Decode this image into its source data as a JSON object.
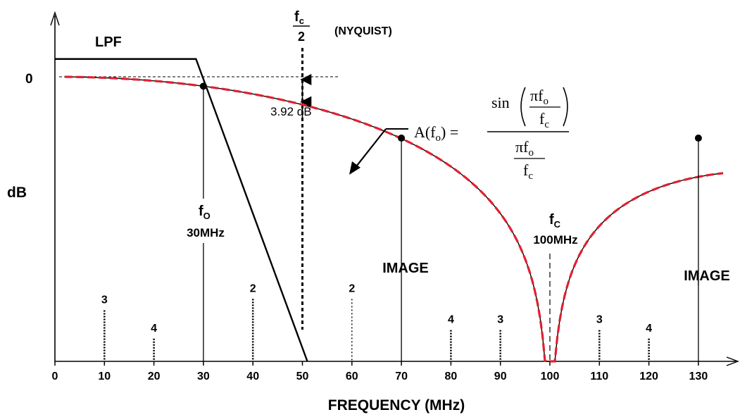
{
  "chart_data": {
    "type": "line",
    "xlabel": "FREQUENCY (MHz)",
    "ylabel": "dB",
    "x_ticks": [
      0,
      10,
      20,
      30,
      40,
      50,
      60,
      70,
      80,
      90,
      100,
      110,
      120,
      130
    ],
    "x_range": [
      0,
      140
    ],
    "y_tick_labels": [
      "0"
    ],
    "legend": "none",
    "grid": false,
    "series": [
      {
        "name": "",
        "style": "dashed-red-over-thin-black",
        "x": [
          0,
          5,
          10,
          15,
          20,
          25,
          30,
          35,
          40,
          45,
          50,
          55,
          60,
          65,
          70,
          75,
          80,
          85,
          90,
          95,
          100,
          105,
          110,
          115,
          120,
          125,
          130,
          135
        ],
        "y": [
          0.0,
          -0.04,
          -0.14,
          -0.32,
          -0.58,
          -0.91,
          -1.32,
          -1.82,
          -2.42,
          -3.12,
          -3.92,
          -4.85,
          -5.93,
          -7.17,
          -8.62,
          -10.34,
          -12.42,
          -15.05,
          -18.6,
          -24.6,
          -40,
          -24.6,
          -18.6,
          -15.05,
          -12.42,
          -10.34,
          -8.62,
          -7.17
        ]
      },
      {
        "name": "LPF",
        "style": "solid-black",
        "x": [
          0,
          28.5,
          51
        ],
        "y": [
          2.5,
          2.5,
          -40
        ]
      }
    ],
    "marked_points": [
      {
        "x": 30,
        "y": -1.32
      },
      {
        "x": 70,
        "y": -8.62
      },
      {
        "x": 130,
        "y": -8.62
      }
    ],
    "dotted_markers": [
      {
        "x": 10,
        "label": "3",
        "height": 0.18
      },
      {
        "x": 20,
        "label": "4",
        "height": 0.08
      },
      {
        "x": 40,
        "label": "2",
        "height": 0.22
      },
      {
        "x": 50,
        "label": "",
        "height": 1.0
      },
      {
        "x": 60,
        "label": "2",
        "height": 0.22,
        "line": "fine-dotted"
      },
      {
        "x": 80,
        "label": "4",
        "height": 0.11
      },
      {
        "x": 90,
        "label": "3",
        "height": 0.11
      },
      {
        "x": 110,
        "label": "3",
        "height": 0.11
      },
      {
        "x": 120,
        "label": "4",
        "height": 0.08
      }
    ],
    "annotations": {
      "lpf": "LPF",
      "nyquist_num": "f",
      "nyquist_num_sub": "c",
      "nyquist_den": "2",
      "nyquist": "(NYQUIST)",
      "attenuation": "3.92 dB",
      "fo_symbol": "f",
      "fo_sub": "O",
      "fo_value": "30MHz",
      "fc_symbol": "f",
      "fc_sub": "C",
      "fc_value": "100MHz",
      "image": "IMAGE",
      "formula_lhs": "A(f",
      "formula_lhs_sub": "o",
      "formula_lhs_close": ") =",
      "formula_sin": "sin",
      "formula_pi": "πf",
      "formula_sub_o": "o",
      "formula_f": "f",
      "formula_sub_c": "c"
    }
  }
}
